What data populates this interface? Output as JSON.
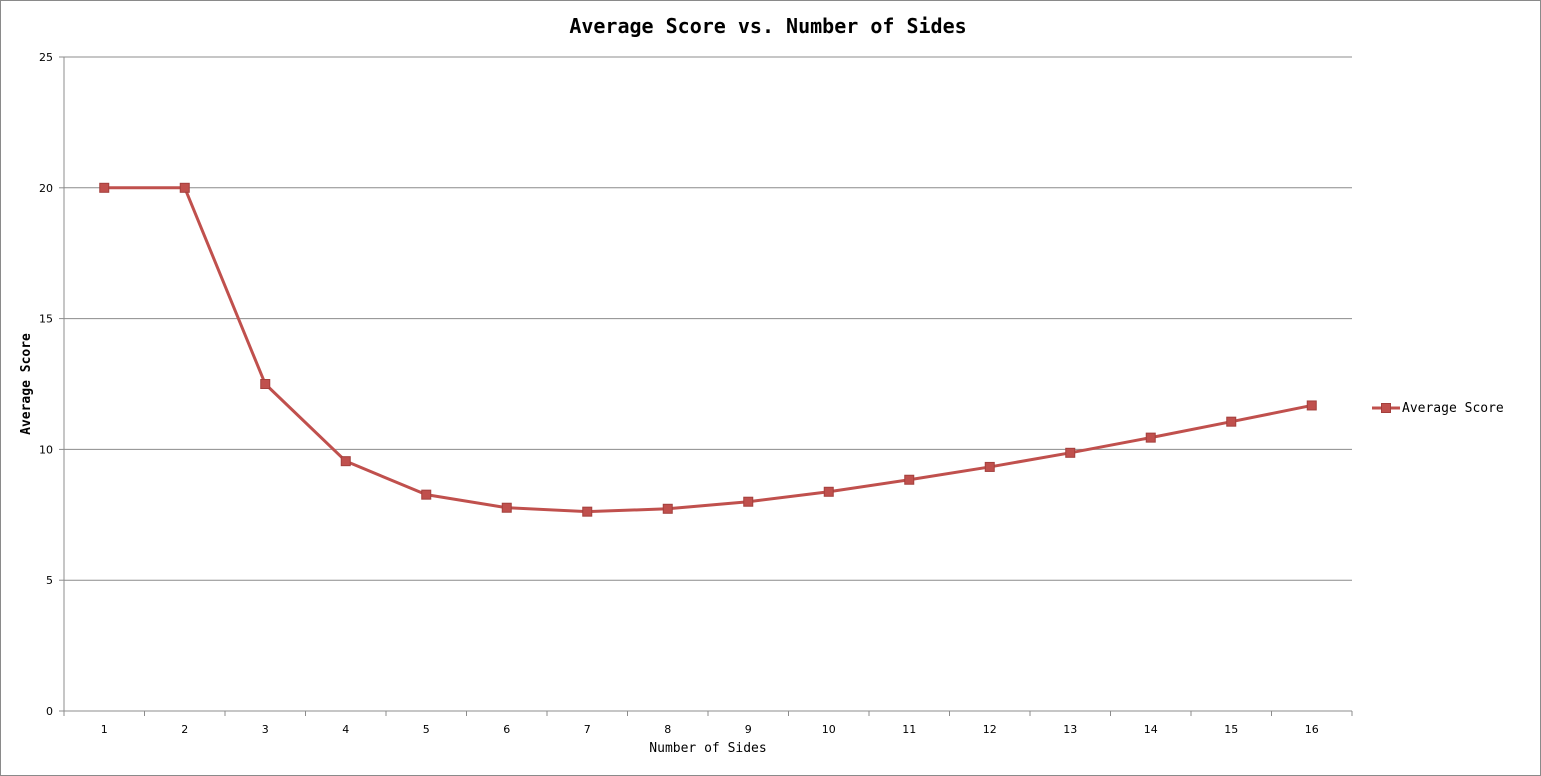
{
  "chart_data": {
    "type": "line",
    "title": "Average Score vs. Number of Sides",
    "xlabel": "Number of Sides",
    "ylabel": "Average Score",
    "categories": [
      "1",
      "2",
      "3",
      "4",
      "5",
      "6",
      "7",
      "8",
      "9",
      "10",
      "11",
      "12",
      "13",
      "14",
      "15",
      "16"
    ],
    "series": [
      {
        "name": "Average Score",
        "color": "#c0504d",
        "marker": "square",
        "values": [
          20.0,
          20.0,
          12.5,
          9.55,
          8.27,
          7.77,
          7.62,
          7.73,
          8.0,
          8.38,
          8.84,
          9.33,
          9.87,
          10.45,
          11.06,
          11.68
        ]
      }
    ],
    "ylim": [
      0,
      25
    ],
    "yticks": [
      0,
      5,
      10,
      15,
      20,
      25
    ],
    "grid": true,
    "legend_position": "right"
  }
}
